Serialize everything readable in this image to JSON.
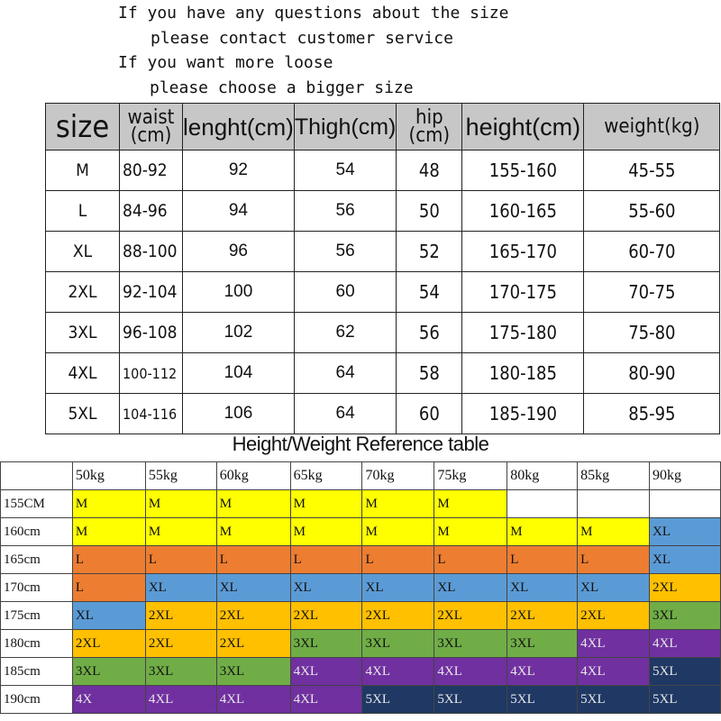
{
  "notice": {
    "line1": "If you have any questions about the size",
    "line2": "please contact customer service",
    "line3": "If you want more loose",
    "line4": "please choose a bigger size"
  },
  "size_table": {
    "headers": {
      "size": "size",
      "waist_top": "waist",
      "waist_bottom": "(cm)",
      "length": "lenght(cm)",
      "thigh": "Thigh(cm)",
      "hip_top": "hip",
      "hip_bottom": "(cm)",
      "height": "height(cm)",
      "weight": "weight(kg)"
    },
    "header_color": "#c7c7c7",
    "rows": [
      [
        "M",
        "80-92",
        "92",
        "54",
        "48",
        "155-160",
        "45-55"
      ],
      [
        "L",
        "84-96",
        "94",
        "56",
        "50",
        "160-165",
        "55-60"
      ],
      [
        "XL",
        "88-100",
        "96",
        "56",
        "52",
        "165-170",
        "60-70"
      ],
      [
        "2XL",
        "92-104",
        "100",
        "60",
        "54",
        "170-175",
        "70-75"
      ],
      [
        "3XL",
        "96-108",
        "102",
        "62",
        "56",
        "175-180",
        "75-80"
      ],
      [
        "4XL",
        "100-112",
        "104",
        "64",
        "58",
        "180-185",
        "80-90"
      ],
      [
        "5XL",
        "104-116",
        "106",
        "64",
        "60",
        "185-190",
        "85-95"
      ]
    ]
  },
  "reference": {
    "title": "Height/Weight Reference table",
    "weights": [
      "50kg",
      "55kg",
      "60kg",
      "65kg",
      "70kg",
      "75kg",
      "80kg",
      "85kg",
      "90kg"
    ],
    "heights": [
      "155CM",
      "160cm",
      "165cm",
      "170cm",
      "175cm",
      "180cm",
      "185cm",
      "190cm"
    ],
    "colors": {
      "M": "#ffff00",
      "L": "#ed7d31",
      "XL": "#5b9bd5",
      "2XL": "#ffc000",
      "3XL": "#70ad47",
      "4XL": "#7030a0",
      "5XL": "#1f3864",
      "empty": "#ffffff"
    },
    "grid": [
      [
        "M",
        "M",
        "M",
        "M",
        "M",
        "M",
        "",
        "",
        ""
      ],
      [
        "M",
        "M",
        "M",
        "M",
        "M",
        "M",
        "M",
        "M",
        "XL"
      ],
      [
        "L",
        "L",
        "L",
        "L",
        "L",
        "L",
        "L",
        "L",
        "XL"
      ],
      [
        "L",
        "XL",
        "XL",
        "XL",
        "XL",
        "XL",
        "XL",
        "XL",
        "2XL"
      ],
      [
        "XL",
        "2XL",
        "2XL",
        "2XL",
        "2XL",
        "2XL",
        "2XL",
        "2XL",
        "3XL"
      ],
      [
        "2XL",
        "2XL",
        "2XL",
        "3XL",
        "3XL",
        "3XL",
        "3XL",
        "4XL",
        "4XL"
      ],
      [
        "3XL",
        "3XL",
        "3XL",
        "4XL",
        "4XL",
        "4XL",
        "4XL",
        "4XL",
        "5XL"
      ],
      [
        "4X",
        "4XL",
        "4XL",
        "4XL",
        "5XL",
        "5XL",
        "5XL",
        "5XL",
        "5XL"
      ]
    ]
  }
}
